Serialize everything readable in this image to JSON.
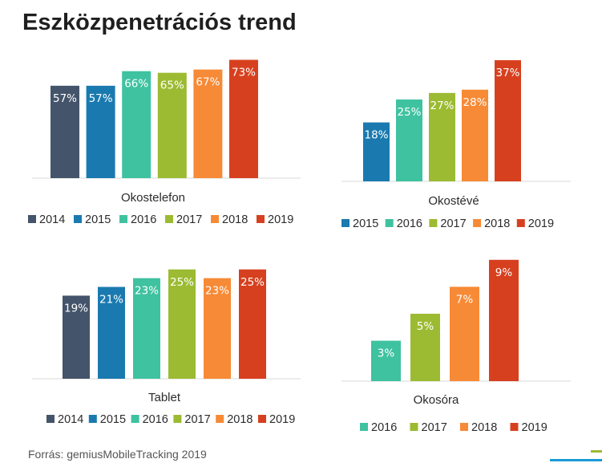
{
  "title": "Eszközpenetrációs trend",
  "source": "Forrás: gemiusMobileTracking 2019",
  "colors": {
    "2014": "#44546a",
    "2015": "#1a7ab0",
    "2016": "#3fc2a0",
    "2017": "#9cbb32",
    "2018": "#f78a36",
    "2019": "#d7401f"
  },
  "chart_data": [
    {
      "type": "bar",
      "xlabel": "Okostelefon",
      "categories": [
        "2014",
        "2015",
        "2016",
        "2017",
        "2018",
        "2019"
      ],
      "values": [
        57,
        57,
        66,
        65,
        67,
        73
      ],
      "labels": [
        "57%",
        "57%",
        "66%",
        "65%",
        "67%",
        "73%"
      ],
      "legend": [
        "2014",
        "2015",
        "2016",
        "2017",
        "2018",
        "2019"
      ],
      "grid": false
    },
    {
      "type": "bar",
      "xlabel": "Okostévé",
      "categories": [
        "2015",
        "2016",
        "2017",
        "2018",
        "2019"
      ],
      "values": [
        18,
        25,
        27,
        28,
        37
      ],
      "labels": [
        "18%",
        "25%",
        "27%",
        "28%",
        "37%"
      ],
      "legend": [
        "2015",
        "2016",
        "2017",
        "2018",
        "2019"
      ],
      "grid": false
    },
    {
      "type": "bar",
      "xlabel": "Tablet",
      "categories": [
        "2014",
        "2015",
        "2016",
        "2017",
        "2018",
        "2019"
      ],
      "values": [
        19,
        21,
        23,
        25,
        23,
        25
      ],
      "labels": [
        "19%",
        "21%",
        "23%",
        "25%",
        "23%",
        "25%"
      ],
      "legend": [
        "2014",
        "2015",
        "2016",
        "2017",
        "2018",
        "2019"
      ],
      "grid": false
    },
    {
      "type": "bar",
      "xlabel": "Okosóra",
      "categories": [
        "2016",
        "2017",
        "2018",
        "2019"
      ],
      "values": [
        3,
        5,
        7,
        9
      ],
      "labels": [
        "3%",
        "5%",
        "7%",
        "9%"
      ],
      "legend": [
        "2016",
        "2017",
        "2018",
        "2019"
      ],
      "grid": false
    }
  ]
}
